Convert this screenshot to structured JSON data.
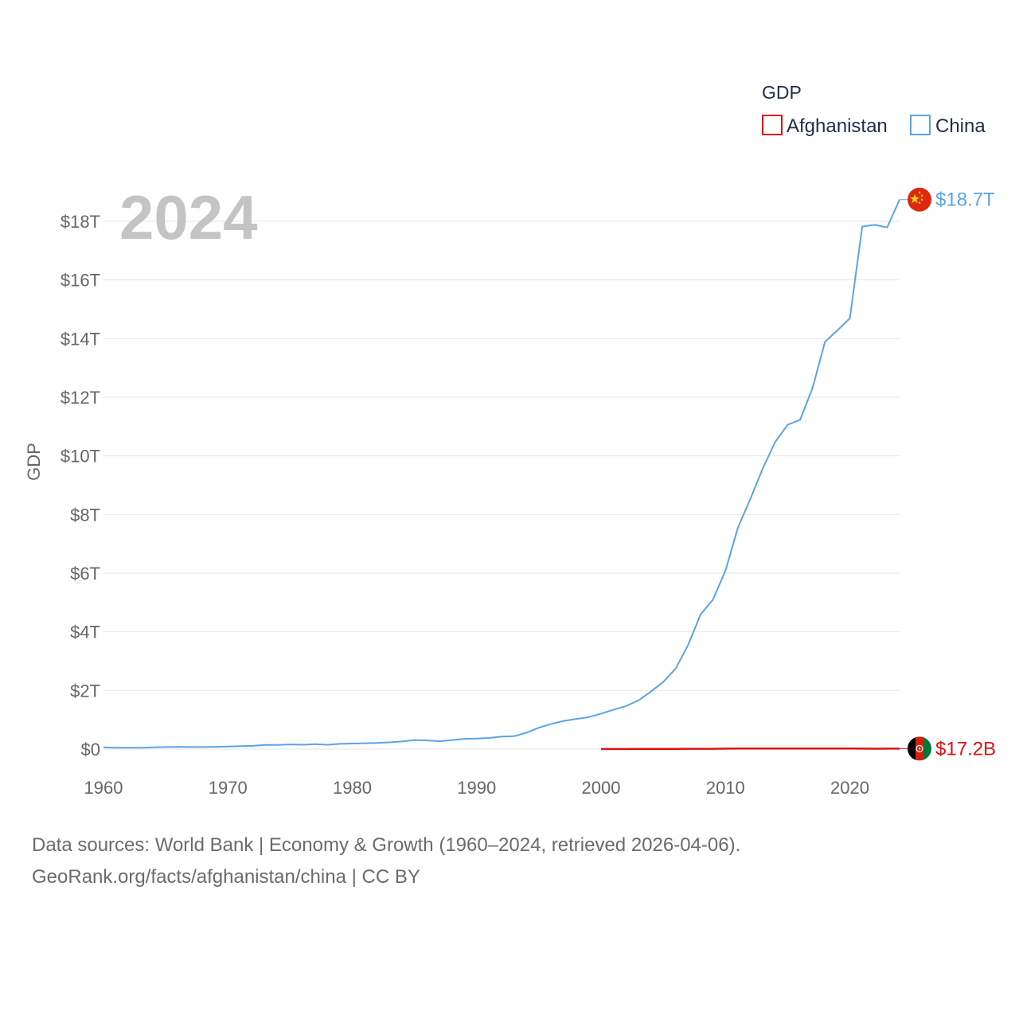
{
  "chart_data": {
    "type": "line",
    "legend_title": "GDP",
    "year_label": "2024",
    "ylabel": "GDP",
    "xlim": [
      1960,
      2024
    ],
    "ylim": [
      0,
      18
    ],
    "x_ticks": [
      {
        "value": 1960,
        "label": "1960"
      },
      {
        "value": 1970,
        "label": "1970"
      },
      {
        "value": 1980,
        "label": "1980"
      },
      {
        "value": 1990,
        "label": "1990"
      },
      {
        "value": 2000,
        "label": "2000"
      },
      {
        "value": 2010,
        "label": "2010"
      },
      {
        "value": 2020,
        "label": "2020"
      }
    ],
    "y_ticks": [
      {
        "value": 0,
        "label": "$0"
      },
      {
        "value": 2,
        "label": "$2T"
      },
      {
        "value": 4,
        "label": "$4T"
      },
      {
        "value": 6,
        "label": "$6T"
      },
      {
        "value": 8,
        "label": "$8T"
      },
      {
        "value": 10,
        "label": "$10T"
      },
      {
        "value": 12,
        "label": "$12T"
      },
      {
        "value": 14,
        "label": "$14T"
      },
      {
        "value": 16,
        "label": "$16T"
      },
      {
        "value": 18,
        "label": "$18T"
      }
    ],
    "units": "trillions of US$",
    "series": [
      {
        "name": "Afghanistan",
        "color": "#e01010",
        "end_label": "$17.2B",
        "flag": "afghanistan-flag",
        "x": [
          2000,
          2001,
          2002,
          2003,
          2004,
          2005,
          2006,
          2007,
          2008,
          2009,
          2010,
          2011,
          2012,
          2013,
          2014,
          2015,
          2016,
          2017,
          2018,
          2019,
          2020,
          2021,
          2022,
          2023,
          2024
        ],
        "values": [
          0.004,
          0.004,
          0.004,
          0.005,
          0.005,
          0.006,
          0.007,
          0.01,
          0.01,
          0.012,
          0.016,
          0.018,
          0.02,
          0.02,
          0.02,
          0.019,
          0.018,
          0.019,
          0.018,
          0.019,
          0.02,
          0.015,
          0.014,
          0.017,
          0.0172
        ]
      },
      {
        "name": "China",
        "color": "#5ba4e6",
        "end_label": "$18.7T",
        "flag": "china-flag",
        "x": [
          1960,
          1961,
          1962,
          1963,
          1964,
          1965,
          1966,
          1967,
          1968,
          1969,
          1970,
          1971,
          1972,
          1973,
          1974,
          1975,
          1976,
          1977,
          1978,
          1979,
          1980,
          1981,
          1982,
          1983,
          1984,
          1985,
          1986,
          1987,
          1988,
          1989,
          1990,
          1991,
          1992,
          1993,
          1994,
          1995,
          1996,
          1997,
          1998,
          1999,
          2000,
          2001,
          2002,
          2003,
          2004,
          2005,
          2006,
          2007,
          2008,
          2009,
          2010,
          2011,
          2012,
          2013,
          2014,
          2015,
          2016,
          2017,
          2018,
          2019,
          2020,
          2021,
          2022,
          2023,
          2024
        ],
        "values": [
          0.06,
          0.05,
          0.05,
          0.05,
          0.06,
          0.07,
          0.08,
          0.07,
          0.07,
          0.08,
          0.09,
          0.1,
          0.11,
          0.14,
          0.14,
          0.16,
          0.15,
          0.17,
          0.15,
          0.18,
          0.19,
          0.2,
          0.21,
          0.23,
          0.26,
          0.31,
          0.3,
          0.27,
          0.31,
          0.35,
          0.36,
          0.38,
          0.43,
          0.44,
          0.56,
          0.73,
          0.86,
          0.96,
          1.03,
          1.09,
          1.21,
          1.34,
          1.47,
          1.66,
          1.96,
          2.29,
          2.75,
          3.55,
          4.59,
          5.1,
          6.09,
          7.55,
          8.53,
          9.57,
          10.48,
          11.06,
          11.23,
          12.31,
          13.89,
          14.28,
          14.69,
          17.82,
          17.88,
          17.79,
          18.74
        ]
      }
    ]
  },
  "source": {
    "line1": "Data sources: World Bank | Economy & Growth (1960–2024, retrieved 2026-04-06).",
    "line2": "GeoRank.org/facts/afghanistan/china | CC BY"
  }
}
